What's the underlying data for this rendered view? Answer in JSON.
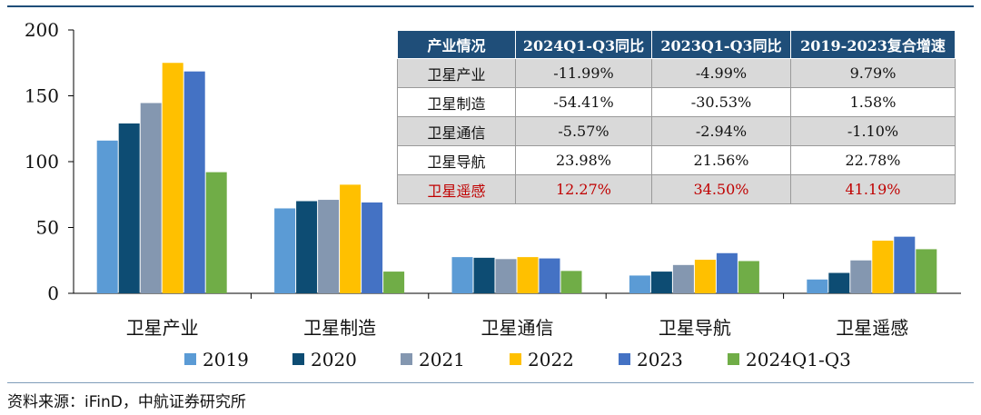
{
  "chart_data": {
    "type": "bar",
    "categories": [
      "卫星产业",
      "卫星制造",
      "卫星通信",
      "卫星导航",
      "卫星遥感"
    ],
    "series": [
      {
        "name": "2019",
        "values": [
          116,
          64.5,
          27.5,
          13.5,
          10.5
        ]
      },
      {
        "name": "2020",
        "values": [
          129,
          70,
          27,
          16.5,
          15.5
        ]
      },
      {
        "name": "2021",
        "values": [
          144.5,
          71,
          26,
          21.5,
          25
        ]
      },
      {
        "name": "2022",
        "values": [
          175,
          82.5,
          27.5,
          25.5,
          40
        ]
      },
      {
        "name": "2023",
        "values": [
          168.5,
          69,
          26.5,
          30.5,
          43
        ]
      },
      {
        "name": "2024Q1-Q3",
        "values": [
          92,
          16.5,
          17,
          24.5,
          33.5
        ]
      }
    ],
    "colors": [
      "#5b9bd5",
      "#0d4c73",
      "#8497b0",
      "#ffc000",
      "#4472c4",
      "#70ad47"
    ],
    "yticks": [
      "0",
      "50",
      "100",
      "150",
      "200"
    ],
    "ylim": [
      0,
      200
    ],
    "legend_position": "bottom",
    "grid": false
  },
  "table": {
    "headers": [
      "产业情况",
      "2024Q1-Q3同比",
      "2023Q1-Q3同比",
      "2019-2023复合增速"
    ],
    "rows": [
      {
        "name": "卫星产业",
        "v1": "-11.99%",
        "v2": "-4.99%",
        "v3": "9.79%"
      },
      {
        "name": "卫星制造",
        "v1": "-54.41%",
        "v2": "-30.53%",
        "v3": "1.58%"
      },
      {
        "name": "卫星通信",
        "v1": "-5.57%",
        "v2": "-2.94%",
        "v3": "-1.10%"
      },
      {
        "name": "卫星导航",
        "v1": "23.98%",
        "v2": "21.56%",
        "v3": "22.78%"
      },
      {
        "name": "卫星遥感",
        "v1": "12.27%",
        "v2": "34.50%",
        "v3": "41.19%"
      }
    ],
    "highlight_color": "#c00000",
    "header_bg": "#1f4e79"
  },
  "source": "资料来源：iFinD，中航证券研究所"
}
